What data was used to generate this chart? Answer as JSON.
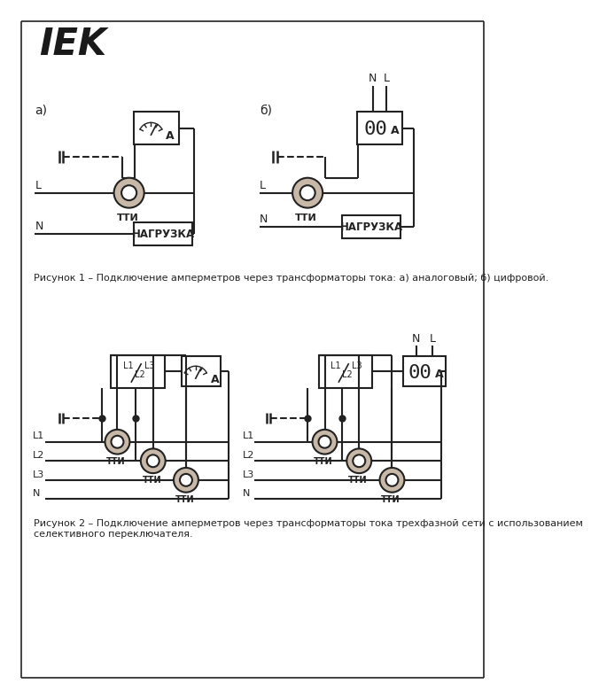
{
  "background_color": "#ffffff",
  "text_color": "#222222",
  "tti_color": "#c8b8a8",
  "fig_width": 7.09,
  "fig_height": 9.99,
  "caption1": "Рисунок 1 – Подключение амперметров через трансформаторы тока: а) аналоговый; б) цифровой.",
  "caption2": "Рисунок 2 – Подключение амперметров через трансформаторы тока трехфазной сети с использованием\nселективного переключателя."
}
